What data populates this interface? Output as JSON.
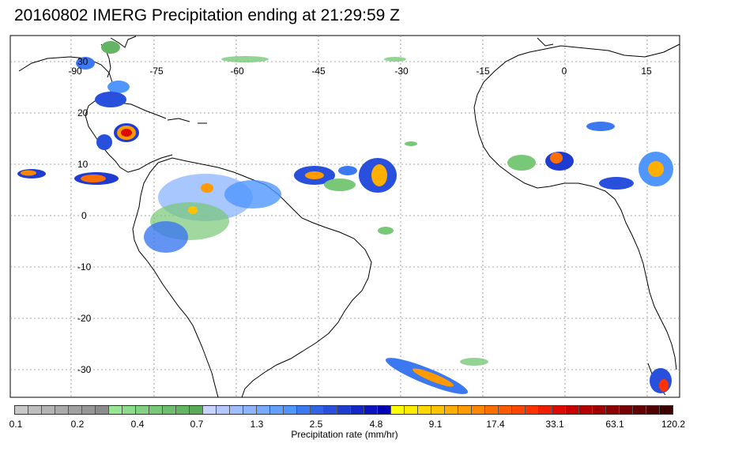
{
  "title": "20160802 IMERG Precipitation ending at 21:29:59 Z",
  "map": {
    "lon_labels": [
      "-90",
      "-75",
      "-60",
      "-45",
      "-30",
      "-15",
      "0",
      "15"
    ],
    "lat_labels": [
      "30",
      "20",
      "10",
      "0",
      "-10",
      "-20",
      "-30"
    ]
  },
  "colorbar": {
    "colors": [
      "#c8c8c8",
      "#bebebe",
      "#b4b4b4",
      "#aaaaaa",
      "#a0a0a0",
      "#969696",
      "#8c8c8c",
      "#96e696",
      "#8cdc8c",
      "#82d282",
      "#78c878",
      "#6ebe6e",
      "#64b464",
      "#5aaa5a",
      "#c8d2ff",
      "#b4c8ff",
      "#a0beff",
      "#8cb4ff",
      "#78aaff",
      "#64a0ff",
      "#5096ff",
      "#3c78f0",
      "#3264e6",
      "#2850dc",
      "#1e3cd2",
      "#1428c8",
      "#0a14be",
      "#0000b4",
      "#ffff00",
      "#ffeb00",
      "#ffd700",
      "#ffc300",
      "#ffaf00",
      "#ff9b00",
      "#ff8700",
      "#ff6e00",
      "#ff5a00",
      "#ff4600",
      "#ff3200",
      "#f01e00",
      "#dc0a00",
      "#c80000",
      "#b40000",
      "#a00000",
      "#8c0000",
      "#780000",
      "#640000",
      "#500000",
      "#3c0000"
    ],
    "ticks": [
      "0.1",
      "0.2",
      "0.4",
      "0.7",
      "1.3",
      "2.5",
      "4.8",
      "9.1",
      "17.4",
      "33.1",
      "63.1",
      "120.2"
    ],
    "label": "Precipitation rate (mm/hr)"
  }
}
